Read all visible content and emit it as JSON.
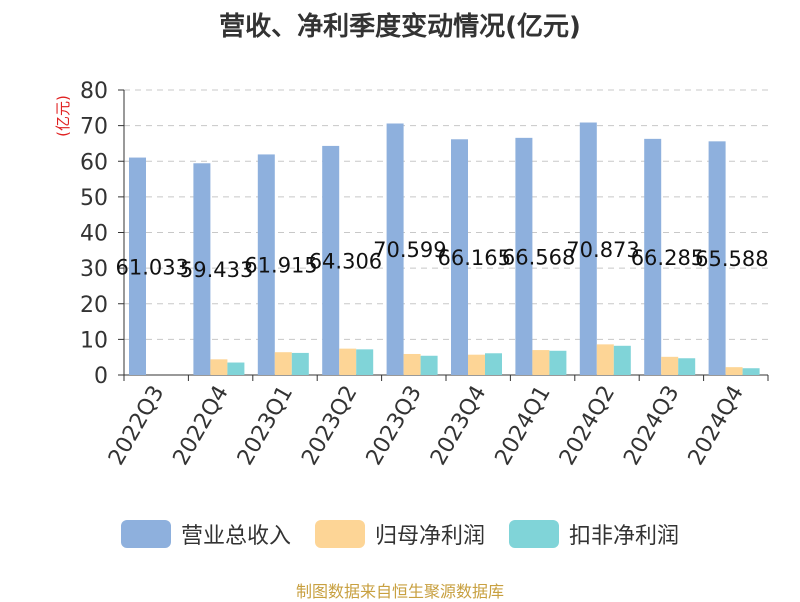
{
  "chart_data": {
    "type": "bar",
    "title": "营收、净利季度变动情况(亿元)",
    "ylabel": "(亿元)",
    "xlabel": "",
    "ylim": [
      0,
      80
    ],
    "yticks": [
      0,
      10,
      20,
      30,
      40,
      50,
      60,
      70,
      80
    ],
    "grid": true,
    "legend_position": "bottom",
    "categories": [
      "2022Q3",
      "2022Q4",
      "2023Q1",
      "2023Q2",
      "2023Q3",
      "2023Q4",
      "2024Q1",
      "2024Q2",
      "2024Q3",
      "2024Q4"
    ],
    "series": [
      {
        "name": "营业总收入",
        "color": "#8eb0dd",
        "values": [
          61.033,
          59.433,
          61.915,
          64.306,
          70.599,
          66.165,
          66.568,
          70.873,
          66.285,
          65.588
        ]
      },
      {
        "name": "归母净利润",
        "color": "#fdd596",
        "values": [
          0,
          4.4,
          6.4,
          7.4,
          5.9,
          5.7,
          7.0,
          8.6,
          5.1,
          2.2
        ]
      },
      {
        "name": "扣非净利润",
        "color": "#80d4d8",
        "values": [
          0,
          3.5,
          6.2,
          7.2,
          5.4,
          6.1,
          6.8,
          8.2,
          4.7,
          1.9
        ]
      }
    ],
    "data_labels": [
      "61.033",
      "59.433",
      "61.915",
      "64.306",
      "70.599",
      "66.165",
      "66.568",
      "70.873",
      "66.285",
      "65.588"
    ]
  },
  "source_note": "制图数据来自恒生聚源数据库"
}
